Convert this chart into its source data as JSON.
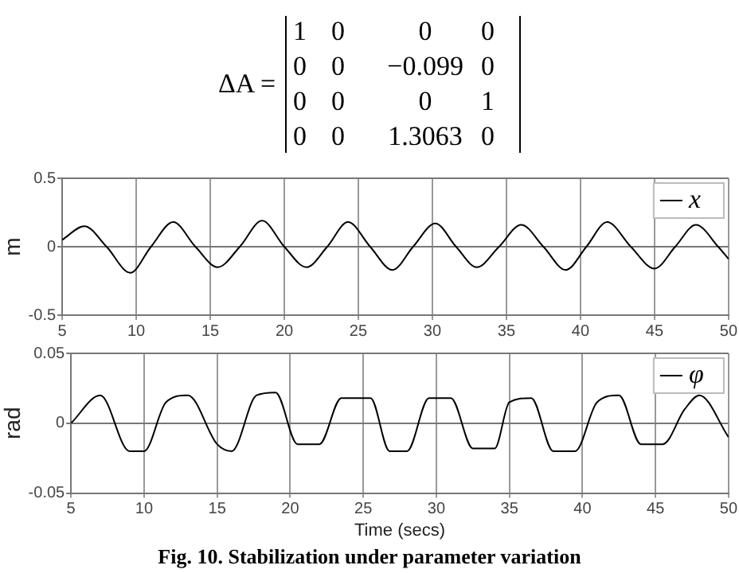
{
  "chart_data": [
    {
      "type": "other",
      "annotations": [
        "ΔA =",
        "1",
        "0",
        "0",
        "0",
        "0",
        "0",
        "−0.099",
        "0",
        "0",
        "0",
        "0",
        "1",
        "0",
        "0",
        "1.3063",
        "0"
      ]
    },
    {
      "type": "line",
      "ylabel": "m",
      "xlim": [
        5,
        50
      ],
      "xticks": [
        5,
        10,
        15,
        20,
        25,
        30,
        35,
        40,
        45,
        50
      ],
      "ylim": [
        -0.5,
        0.5
      ],
      "yticks": [
        -0.5,
        0,
        0.5
      ],
      "grid": true,
      "legend": "top right",
      "marker": "none",
      "line_style": "solid",
      "series": [
        {
          "name": "x",
          "color": "#000000",
          "x": [
            5,
            6.5,
            8,
            9.6,
            11,
            12.5,
            14,
            15.5,
            17,
            18.5,
            20,
            21.5,
            22.9,
            24.3,
            25.8,
            27.3,
            28.7,
            30.2,
            31.6,
            33,
            34.5,
            36,
            37.5,
            39,
            40.4,
            41.8,
            43.4,
            45,
            46.4,
            47.8,
            49.3,
            50
          ],
          "values": [
            0.05,
            0.15,
            0,
            -0.19,
            0,
            0.18,
            0,
            -0.15,
            0,
            0.19,
            0,
            -0.15,
            0,
            0.18,
            0,
            -0.17,
            0,
            0.17,
            0,
            -0.15,
            0,
            0.16,
            0,
            -0.17,
            0,
            0.18,
            0,
            -0.16,
            0,
            0.16,
            0,
            -0.09
          ]
        }
      ]
    },
    {
      "type": "line",
      "xlabel": "Time (secs)",
      "ylabel": "rad",
      "xlim": [
        5,
        50
      ],
      "xticks": [
        5,
        10,
        15,
        20,
        25,
        30,
        35,
        40,
        45,
        50
      ],
      "ylim": [
        -0.05,
        0.05
      ],
      "yticks": [
        -0.05,
        0,
        0.05
      ],
      "grid": true,
      "legend": "top right",
      "marker": "none",
      "line_style": "solid",
      "series": [
        {
          "name": "φ",
          "color": "#000000",
          "x": [
            5,
            7,
            9,
            10,
            11.5,
            13,
            15,
            16,
            17.7,
            19,
            20.5,
            22,
            23.5,
            25.5,
            26.8,
            28,
            29.5,
            31,
            32.5,
            34,
            35,
            36.5,
            38,
            39.5,
            41,
            42.5,
            44,
            45.5,
            47,
            48,
            50
          ],
          "values": [
            0,
            0.02,
            -0.02,
            -0.02,
            0.015,
            0.02,
            -0.015,
            -0.02,
            0.02,
            0.022,
            -0.015,
            -0.015,
            0.018,
            0.018,
            -0.02,
            -0.02,
            0.018,
            0.018,
            -0.018,
            -0.018,
            0.015,
            0.018,
            -0.02,
            -0.02,
            0.015,
            0.02,
            -0.015,
            -0.015,
            0.01,
            0.02,
            -0.01
          ]
        }
      ],
      "annotations": [
        "Fig. 10. Stabilization under parameter variation"
      ]
    }
  ]
}
